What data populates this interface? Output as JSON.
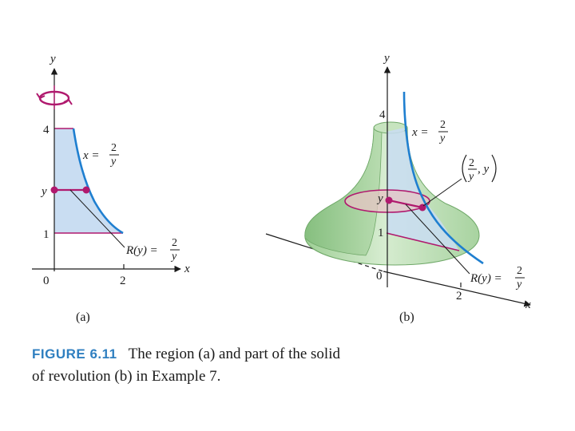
{
  "panel_a": {
    "axis_y": "y",
    "axis_x": "x",
    "tick_4": "4",
    "tick_1": "1",
    "tick_y": "y",
    "origin": "0",
    "tick_2": "2",
    "curve_lhs": "x =",
    "curve_num": "2",
    "curve_den": "y",
    "radius_lhs": "R(y) =",
    "radius_num": "2",
    "radius_den": "y",
    "sublabel": "(a)"
  },
  "panel_b": {
    "axis_y": "y",
    "axis_x": "x",
    "tick_4": "4",
    "tick_1": "1",
    "tick_y": "y",
    "origin": "0",
    "tick_2": "2",
    "curve_lhs": "x =",
    "curve_num": "2",
    "curve_den": "y",
    "point_num": "2",
    "point_den": "y",
    "point_tail": ", y",
    "radius_lhs": "R(y) =",
    "radius_num": "2",
    "radius_den": "y",
    "sublabel": "(b)"
  },
  "caption": {
    "label": "FIGURE 6.11",
    "text": "The region (a) and part of the solid of revolution (b) in Example 7."
  },
  "colors": {
    "region_fill": "#c9ddf2",
    "curve_blue": "#1f7fd0",
    "magenta": "#b0196e",
    "solid_green": "#bfe0b4",
    "solid_green_dark": "#8fc38a",
    "disk_pink": "#e6c4c4"
  },
  "icons": [
    "rotation-arrow-icon"
  ]
}
